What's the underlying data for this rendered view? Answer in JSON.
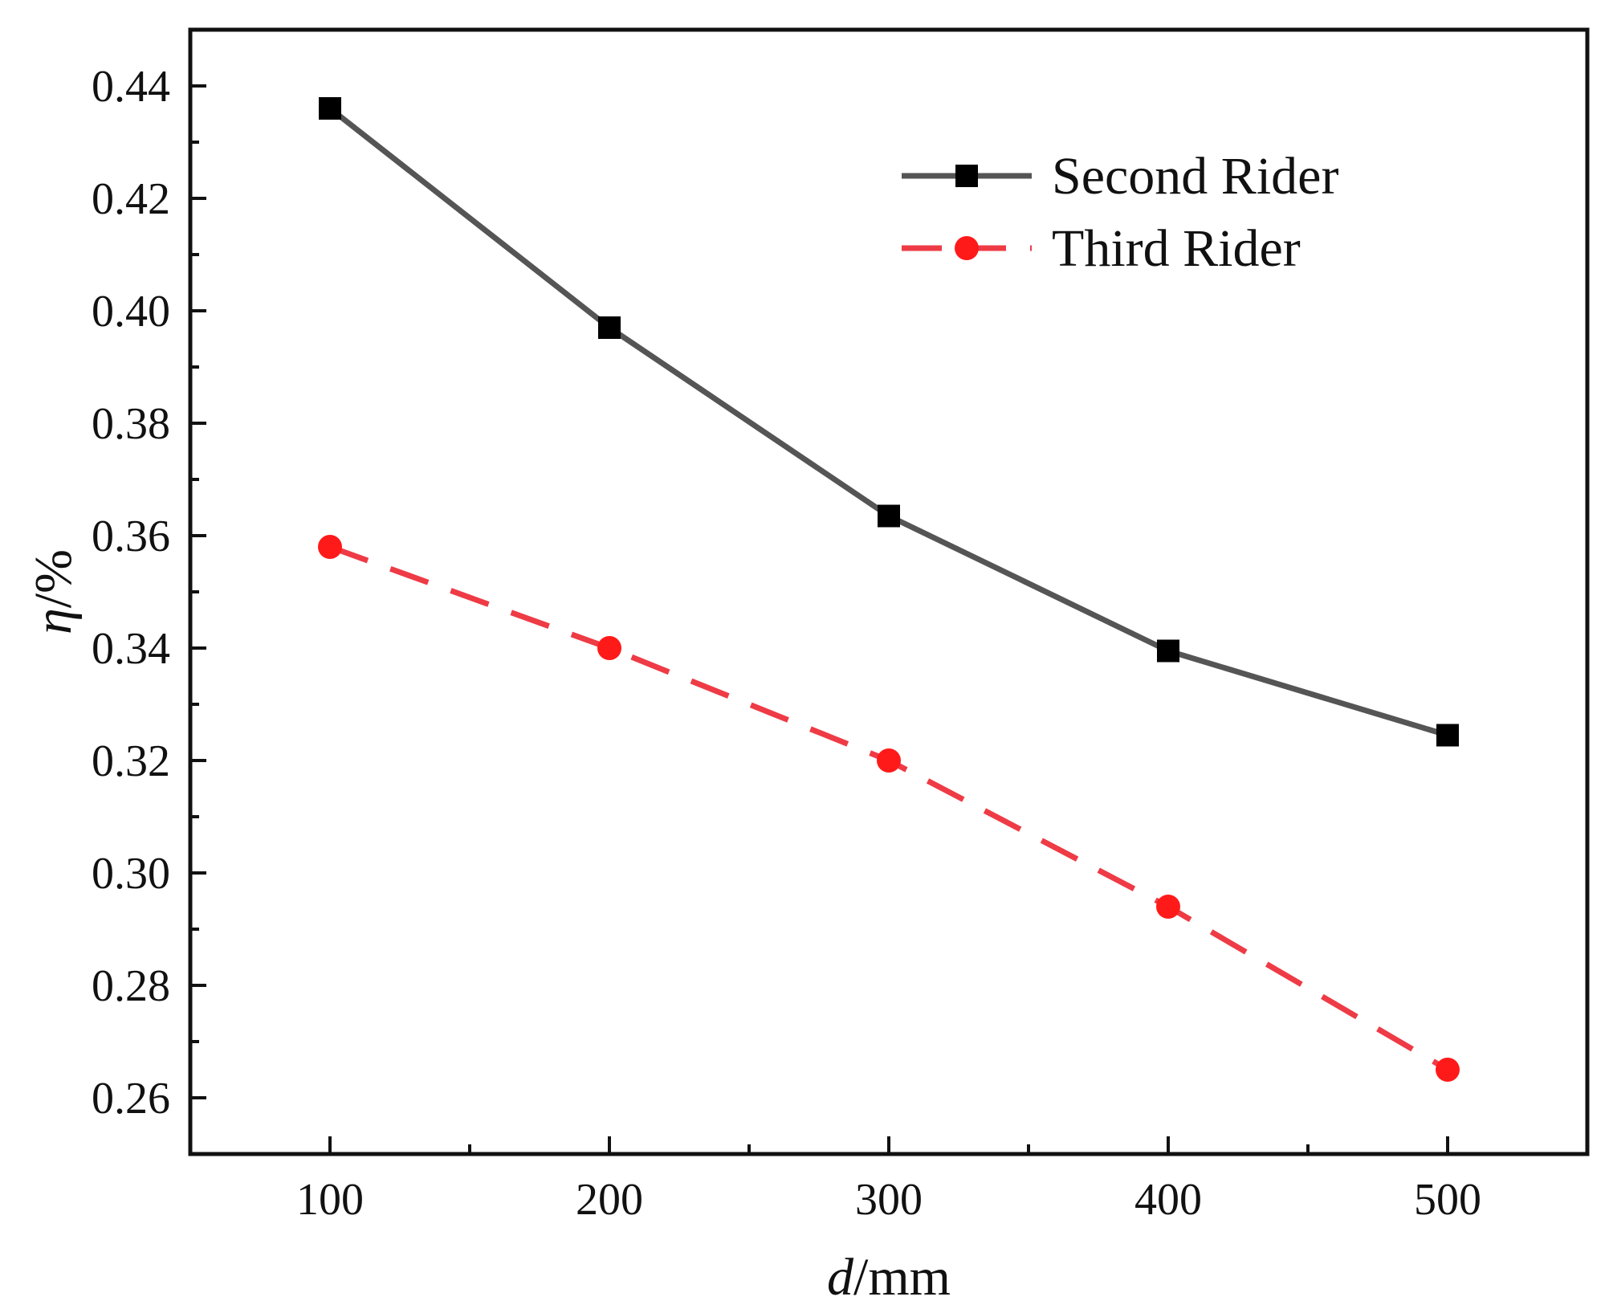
{
  "chart_data": {
    "type": "line",
    "title": "",
    "xlabel": {
      "italic": "d",
      "rest": "/mm"
    },
    "ylabel": {
      "italic": "η",
      "rest": "/%"
    },
    "x": [
      100,
      200,
      300,
      400,
      500
    ],
    "xlim": [
      50,
      550
    ],
    "ylim": [
      0.25,
      0.45
    ],
    "xticks": [
      100,
      200,
      300,
      400,
      500
    ],
    "xtick_labels": [
      "100",
      "200",
      "300",
      "400",
      "500"
    ],
    "yticks": [
      0.26,
      0.28,
      0.3,
      0.32,
      0.34,
      0.36,
      0.38,
      0.4,
      0.42,
      0.44
    ],
    "ytick_labels": [
      "0.26",
      "0.28",
      "0.30",
      "0.32",
      "0.34",
      "0.36",
      "0.38",
      "0.40",
      "0.42",
      "0.44"
    ],
    "grid": false,
    "legend_position": "top-right",
    "series": [
      {
        "name": "Second Rider",
        "values": [
          0.436,
          0.397,
          0.3635,
          0.3395,
          0.3245
        ],
        "color": "#555555",
        "marker_color": "#000000",
        "marker": "square",
        "line_style": "solid"
      },
      {
        "name": "Third Rider",
        "values": [
          0.358,
          0.34,
          0.32,
          0.294,
          0.265
        ],
        "color": "#ee3b45",
        "marker_color": "#ff1a1a",
        "marker": "circle",
        "line_style": "dashed"
      }
    ]
  }
}
